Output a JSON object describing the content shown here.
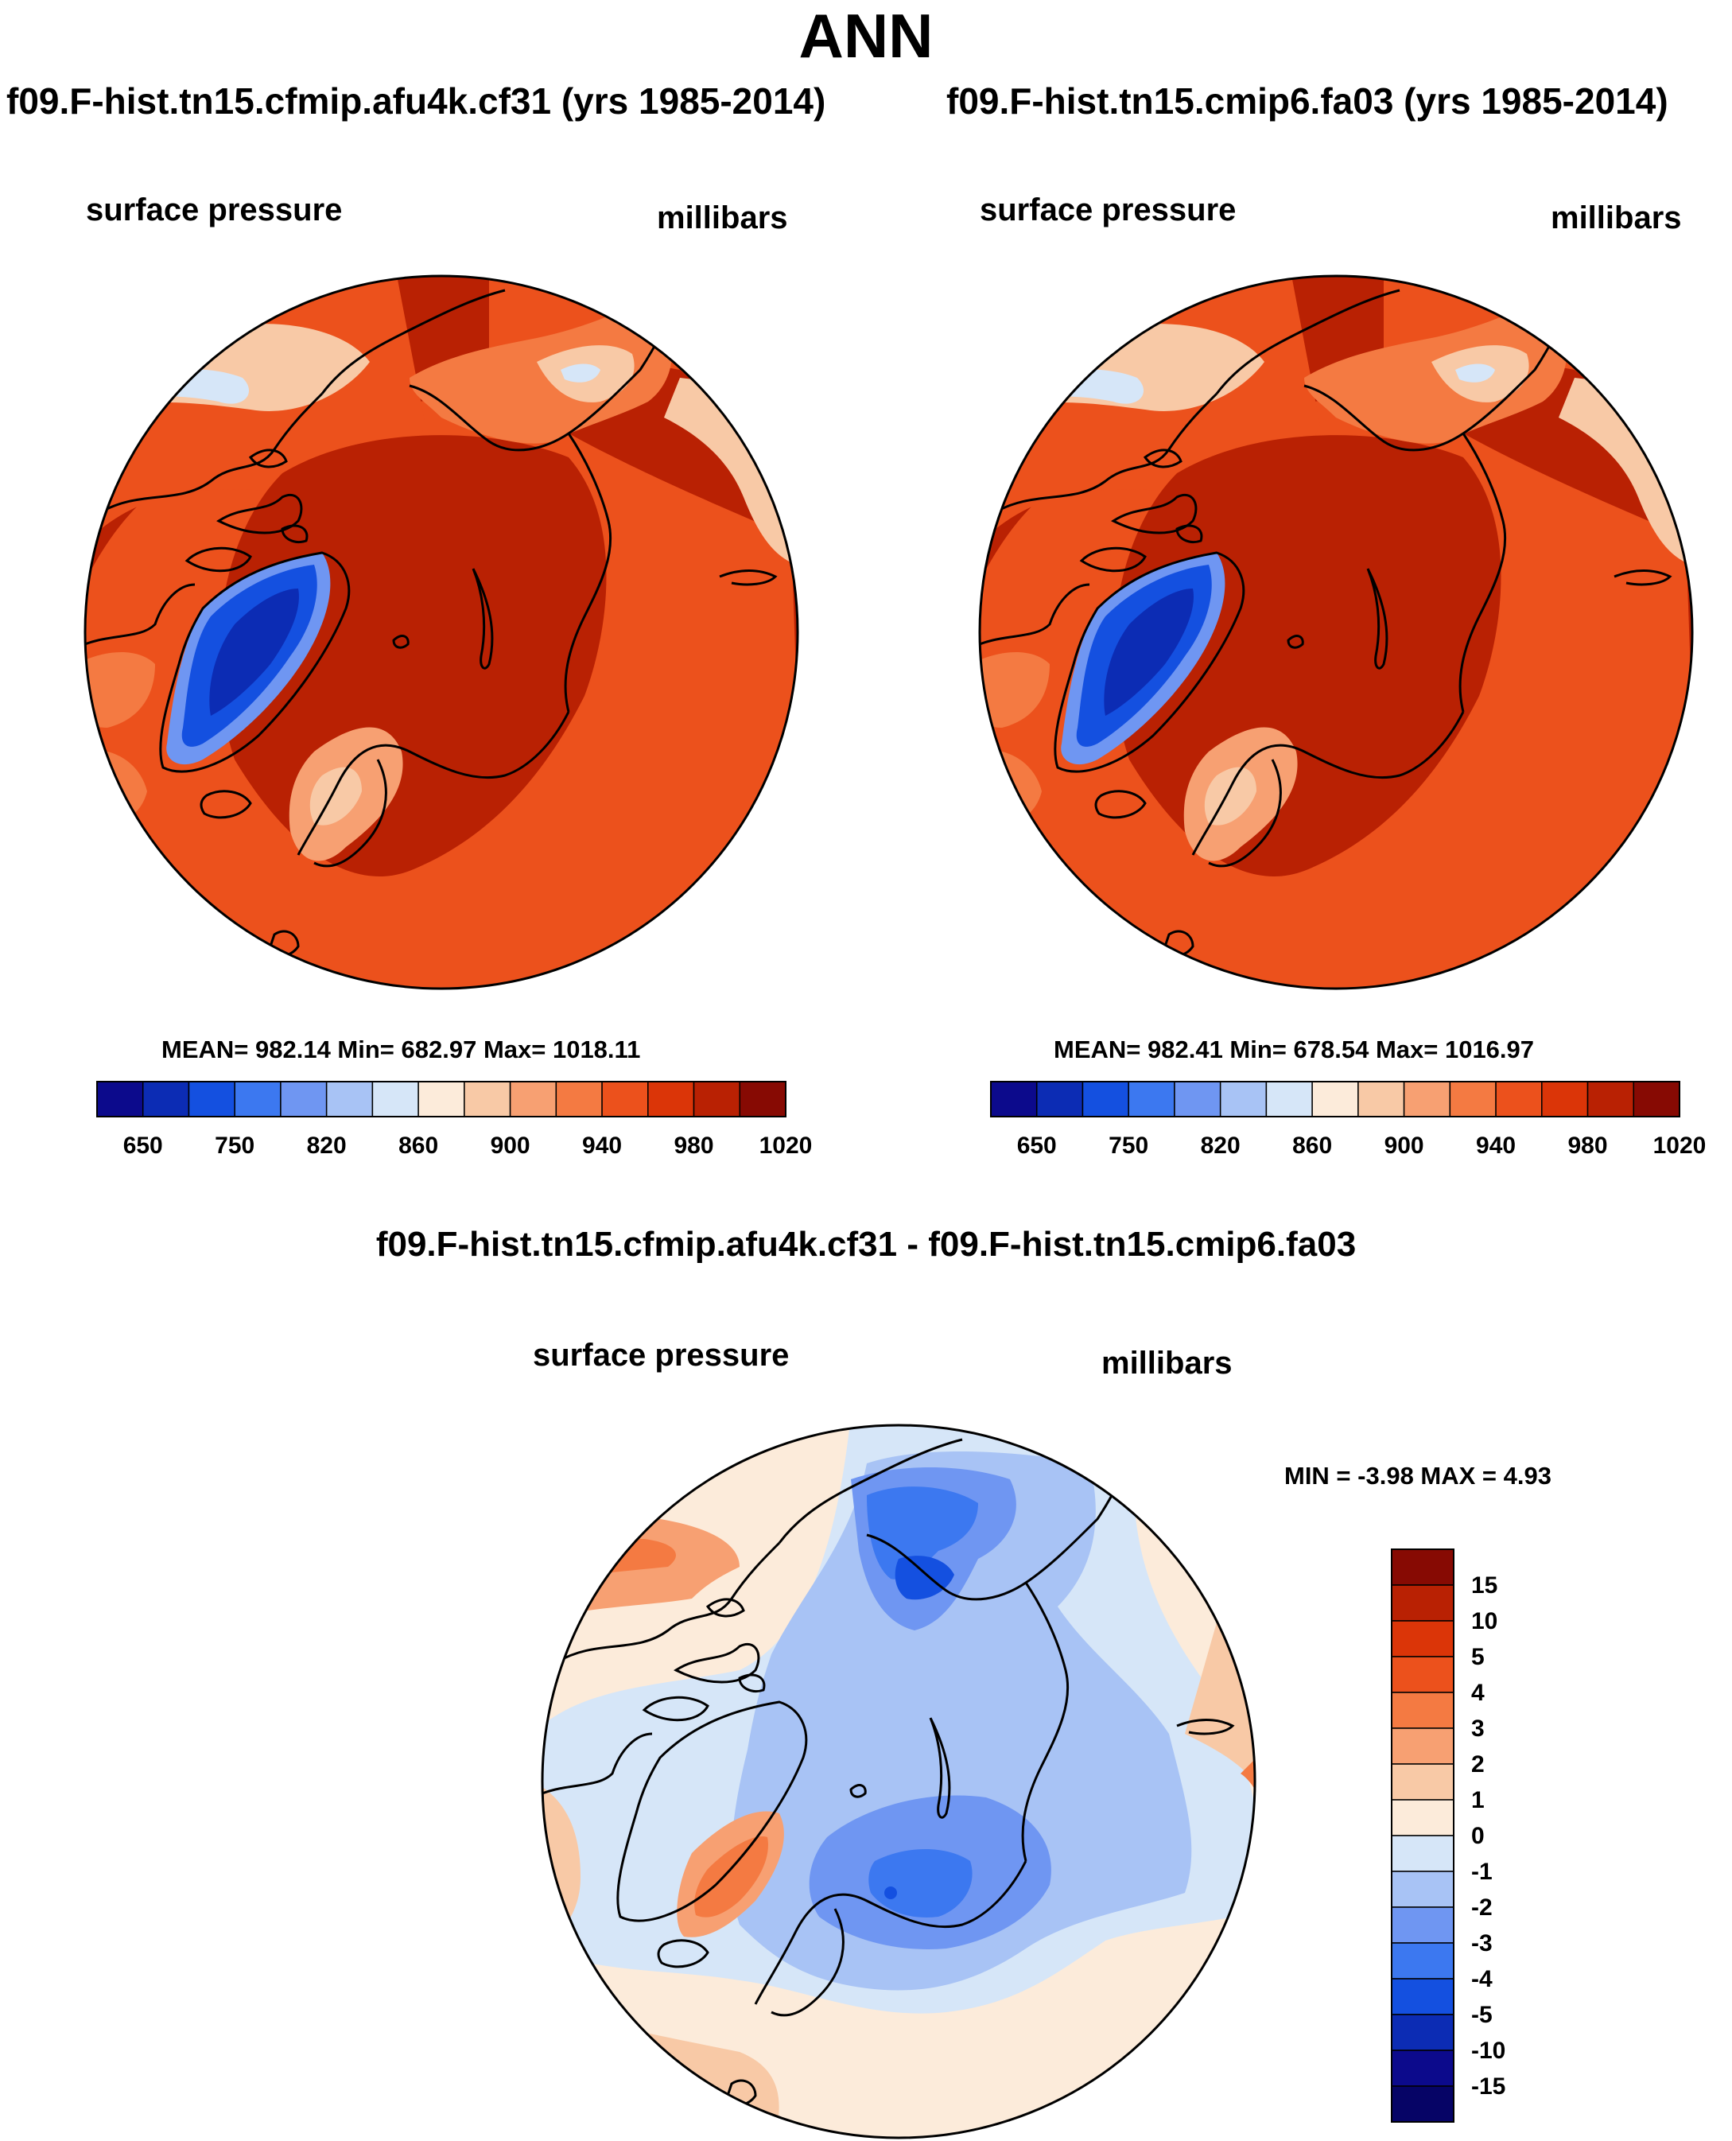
{
  "title": "ANN",
  "panels": [
    {
      "case_title": "f09.F-hist.tn15.cfmip.afu4k.cf31 (yrs 1985-2014)",
      "variable": "surface pressure",
      "units": "millibars",
      "stats": "MEAN= 982.14  Min= 682.97  Max= 1018.11"
    },
    {
      "case_title": "f09.F-hist.tn15.cmip6.fa03 (yrs 1985-2014)",
      "variable": "surface pressure",
      "units": "millibars",
      "stats": "MEAN= 982.41  Min= 678.54  Max= 1016.97"
    }
  ],
  "difference": {
    "title": "f09.F-hist.tn15.cfmip.afu4k.cf31 - f09.F-hist.tn15.cmip6.fa03",
    "variable": "surface pressure",
    "units": "millibars",
    "stats": "MIN =  -3.98 MAX =   4.93"
  },
  "chart_data": [
    {
      "type": "heatmap",
      "projection": "north polar stereographic",
      "title": "surface pressure",
      "units": "millibars",
      "mean": 982.14,
      "min": 682.97,
      "max": 1018.11,
      "colorbar": {
        "orientation": "horizontal",
        "tick_labels": [
          "650",
          "750",
          "820",
          "860",
          "900",
          "940",
          "980",
          "1020"
        ],
        "colors": [
          "#0c0a8c",
          "#0c2cb4",
          "#1450e0",
          "#3c78f0",
          "#6f96f2",
          "#a8c3f5",
          "#d6e6f8",
          "#fcebda",
          "#f8c9a6",
          "#f7a072",
          "#f47a42",
          "#ec511c",
          "#db3508",
          "#b92103",
          "#870a03"
        ]
      }
    },
    {
      "type": "heatmap",
      "projection": "north polar stereographic",
      "title": "surface pressure",
      "units": "millibars",
      "mean": 982.41,
      "min": 678.54,
      "max": 1016.97,
      "colorbar": {
        "orientation": "horizontal",
        "tick_labels": [
          "650",
          "750",
          "820",
          "860",
          "900",
          "940",
          "980",
          "1020"
        ],
        "colors": [
          "#0c0a8c",
          "#0c2cb4",
          "#1450e0",
          "#3c78f0",
          "#6f96f2",
          "#a8c3f5",
          "#d6e6f8",
          "#fcebda",
          "#f8c9a6",
          "#f7a072",
          "#f47a42",
          "#ec511c",
          "#db3508",
          "#b92103",
          "#870a03"
        ]
      }
    },
    {
      "type": "heatmap",
      "projection": "north polar stereographic",
      "title": "f09.F-hist.tn15.cfmip.afu4k.cf31 - f09.F-hist.tn15.cmip6.fa03",
      "units": "millibars",
      "min": -3.98,
      "max": 4.93,
      "colorbar": {
        "orientation": "vertical",
        "tick_labels": [
          "15",
          "10",
          "5",
          "4",
          "3",
          "2",
          "1",
          "0",
          "-1",
          "-2",
          "-3",
          "-4",
          "-5",
          "-10",
          "-15"
        ],
        "colors": [
          "#870a03",
          "#b92103",
          "#db3508",
          "#ec511c",
          "#f47a42",
          "#f7a072",
          "#f8c9a6",
          "#fcebda",
          "#d6e6f8",
          "#a8c3f5",
          "#6f96f2",
          "#3c78f0",
          "#1450e0",
          "#0c2cb4",
          "#0c0a8c",
          "#060466"
        ]
      }
    }
  ]
}
